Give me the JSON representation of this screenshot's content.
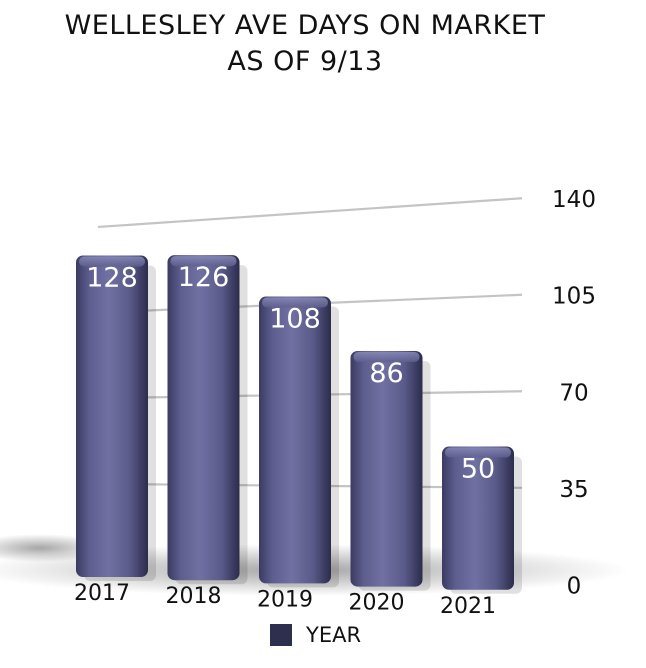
{
  "chart_data": {
    "type": "bar",
    "title": "WELLESLEY AVE DAYS ON MARKET",
    "subtitle": "AS OF 9/13",
    "categories": [
      "2017",
      "2018",
      "2019",
      "2020",
      "2021"
    ],
    "series": [
      {
        "name": "YEAR",
        "values": [
          128,
          126,
          108,
          86,
          50
        ]
      }
    ],
    "data_labels": [
      "128",
      "126",
      "108",
      "86",
      "50"
    ],
    "y_ticks": [
      0,
      35,
      70,
      105,
      140
    ],
    "ylim": [
      0,
      140
    ],
    "xlabel": "",
    "ylabel": "",
    "grid": true,
    "legend_position": "bottom",
    "bar_color": "#5d5d8c",
    "legend_color": "#2e2e4f"
  }
}
